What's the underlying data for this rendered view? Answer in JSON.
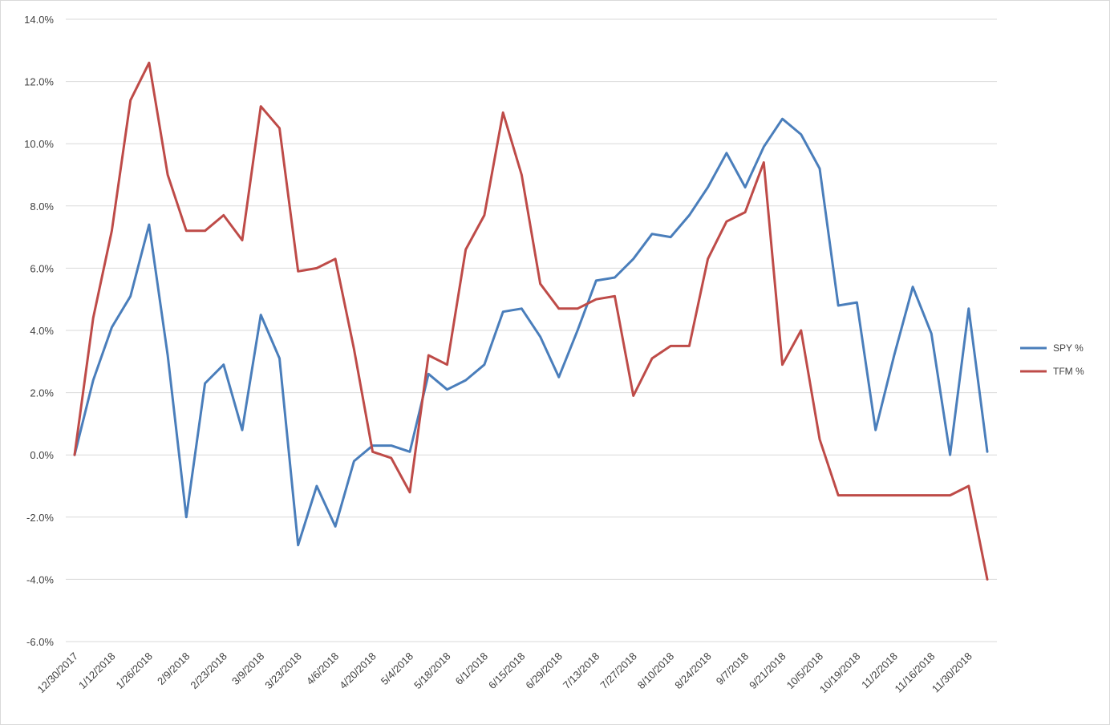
{
  "chart_data": {
    "type": "line",
    "title": "",
    "xlabel": "",
    "ylabel": "",
    "ylim": [
      -6.0,
      14.0
    ],
    "y_ticks": [
      "14.0%",
      "12.0%",
      "10.0%",
      "8.0%",
      "6.0%",
      "4.0%",
      "2.0%",
      "0.0%",
      "-2.0%",
      "-4.0%",
      "-6.0%"
    ],
    "y_tick_values": [
      14,
      12,
      10,
      8,
      6,
      4,
      2,
      0,
      -2,
      -4,
      -6
    ],
    "grid": true,
    "legend_position": "right",
    "x_labels": [
      "12/30/2017",
      "1/12/2018",
      "1/26/2018",
      "2/9/2018",
      "2/23/2018",
      "3/9/2018",
      "3/23/2018",
      "4/6/2018",
      "4/20/2018",
      "5/4/2018",
      "5/18/2018",
      "6/1/2018",
      "6/15/2018",
      "6/29/2018",
      "7/13/2018",
      "7/27/2018",
      "8/10/2018",
      "8/24/2018",
      "9/7/2018",
      "9/21/2018",
      "10/5/2018",
      "10/19/2018",
      "11/2/2018",
      "11/16/2018",
      "11/30/2018"
    ],
    "point_count": 50,
    "series": [
      {
        "name": "SPY %",
        "color": "#4a7ebb",
        "values": [
          0.0,
          2.4,
          4.1,
          5.1,
          7.4,
          3.2,
          -2.0,
          2.3,
          2.9,
          0.8,
          4.5,
          3.1,
          -2.9,
          -1.0,
          -2.3,
          -0.2,
          0.3,
          0.3,
          0.1,
          2.6,
          2.1,
          2.4,
          2.9,
          4.6,
          4.7,
          3.8,
          2.5,
          4.0,
          5.6,
          5.7,
          6.3,
          7.1,
          7.0,
          7.7,
          8.6,
          9.7,
          8.6,
          9.9,
          10.8,
          10.3,
          9.2,
          4.8,
          4.9,
          0.8,
          3.2,
          5.4,
          3.9,
          0.0,
          4.7,
          0.1
        ]
      },
      {
        "name": "TFM %",
        "color": "#be4b48",
        "values": [
          0.0,
          4.4,
          7.2,
          11.4,
          12.6,
          9.0,
          7.2,
          7.2,
          7.7,
          6.9,
          11.2,
          10.5,
          5.9,
          6.0,
          6.3,
          3.4,
          0.1,
          -0.1,
          -1.2,
          3.2,
          2.9,
          6.6,
          7.7,
          11.0,
          9.0,
          5.5,
          4.7,
          4.7,
          5.0,
          5.1,
          1.9,
          3.1,
          3.5,
          3.5,
          6.3,
          7.5,
          7.8,
          9.4,
          2.9,
          4.0,
          0.5,
          -1.3,
          -1.3,
          -1.3,
          -1.3,
          -1.3,
          -1.3,
          -1.3,
          -1.0,
          -4.0
        ]
      }
    ]
  }
}
